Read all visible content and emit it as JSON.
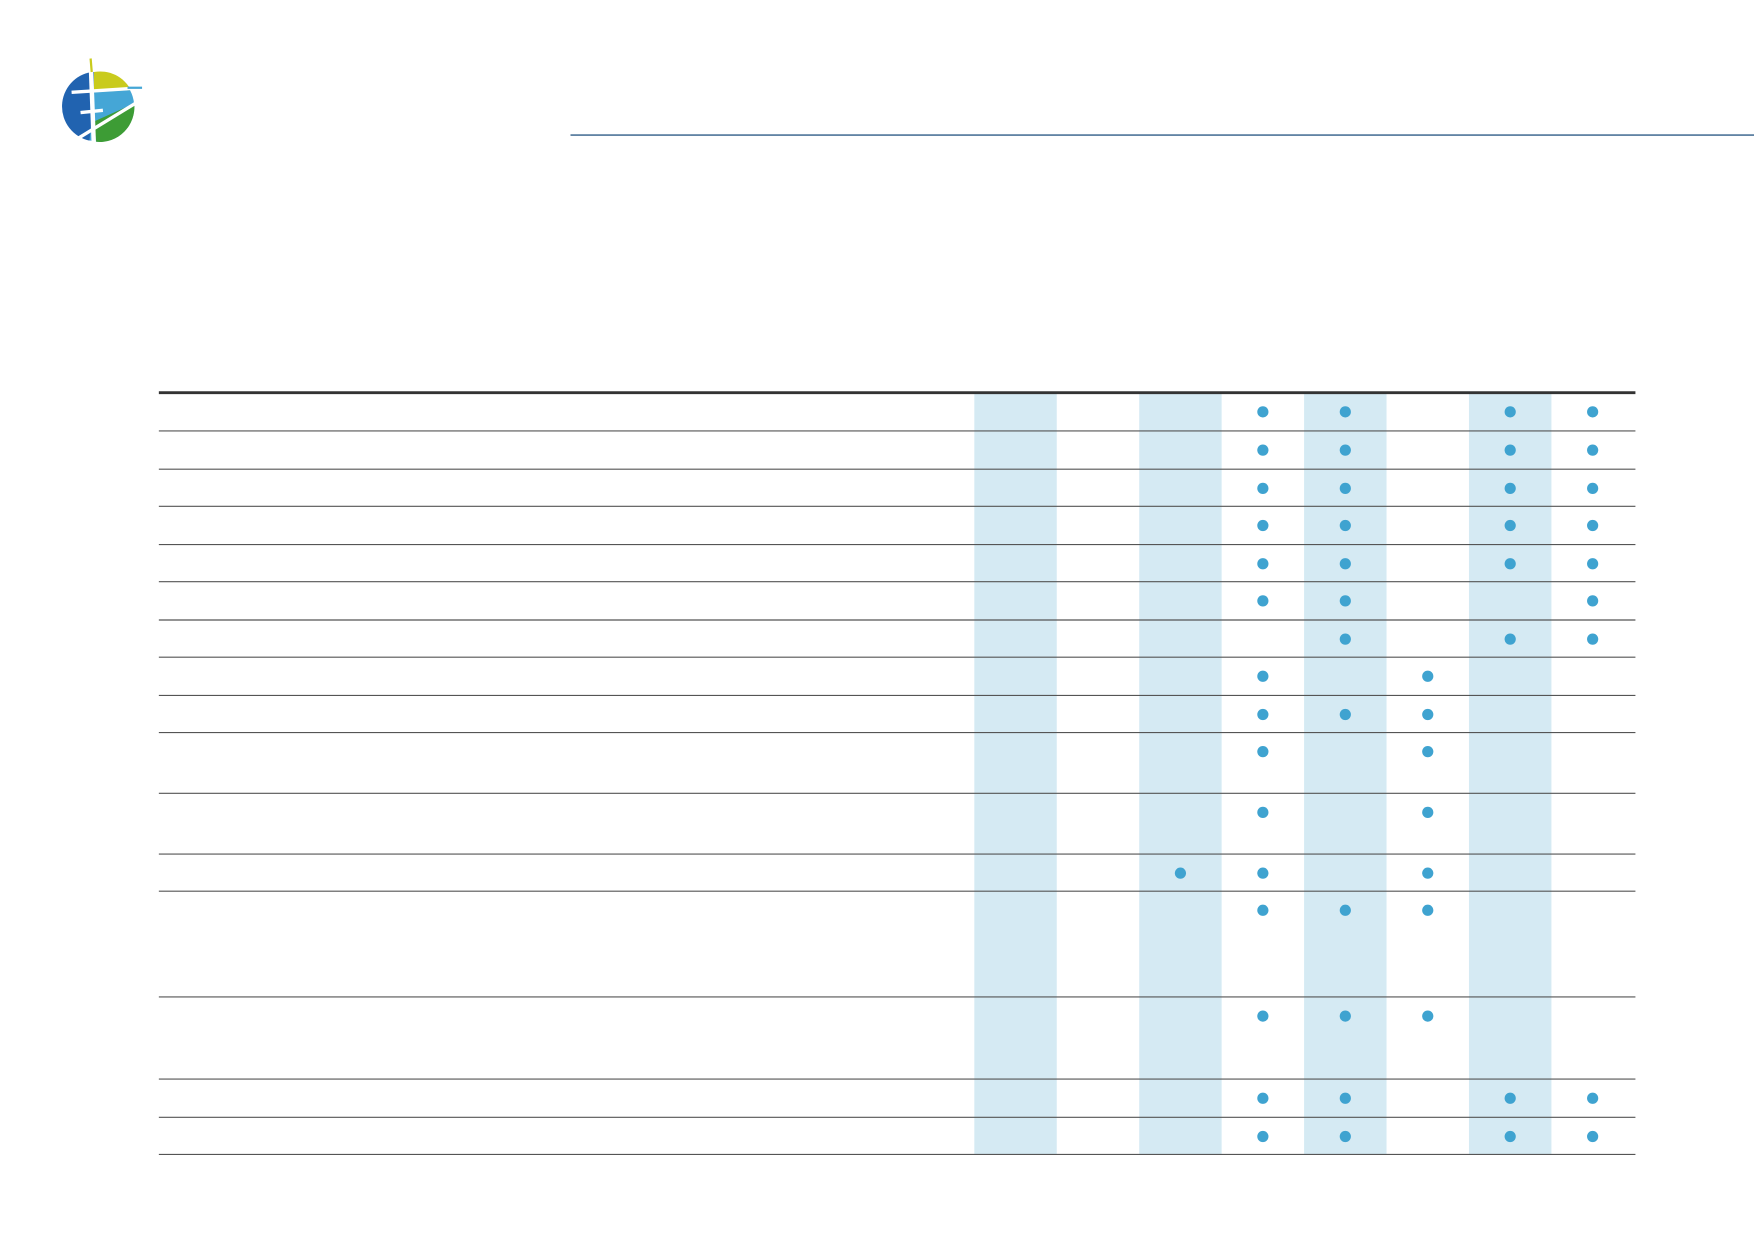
{
  "table": {
    "rows": [
      [
        false,
        false,
        false,
        true,
        true,
        false,
        true,
        true
      ],
      [
        false,
        false,
        false,
        true,
        true,
        false,
        true,
        true
      ],
      [
        false,
        false,
        false,
        true,
        true,
        false,
        true,
        true
      ],
      [
        false,
        false,
        false,
        true,
        true,
        false,
        true,
        true
      ],
      [
        false,
        false,
        false,
        true,
        true,
        false,
        true,
        true
      ],
      [
        false,
        false,
        false,
        true,
        true,
        false,
        false,
        true
      ],
      [
        false,
        false,
        false,
        false,
        true,
        false,
        true,
        true
      ],
      [
        false,
        false,
        false,
        true,
        false,
        true,
        false,
        false
      ],
      [
        false,
        false,
        false,
        true,
        true,
        true,
        false,
        false
      ],
      [
        false,
        false,
        false,
        true,
        false,
        true,
        false,
        false
      ],
      [
        false,
        false,
        false,
        true,
        false,
        true,
        false,
        false
      ],
      [
        false,
        false,
        true,
        true,
        false,
        true,
        false,
        false
      ],
      [
        false,
        false,
        false,
        true,
        true,
        true,
        false,
        false
      ],
      [
        false,
        false,
        false,
        true,
        true,
        true,
        false,
        false
      ],
      [
        false,
        false,
        false,
        true,
        true,
        false,
        true,
        true
      ],
      [
        false,
        false,
        false,
        true,
        true,
        false,
        true,
        true
      ]
    ]
  }
}
